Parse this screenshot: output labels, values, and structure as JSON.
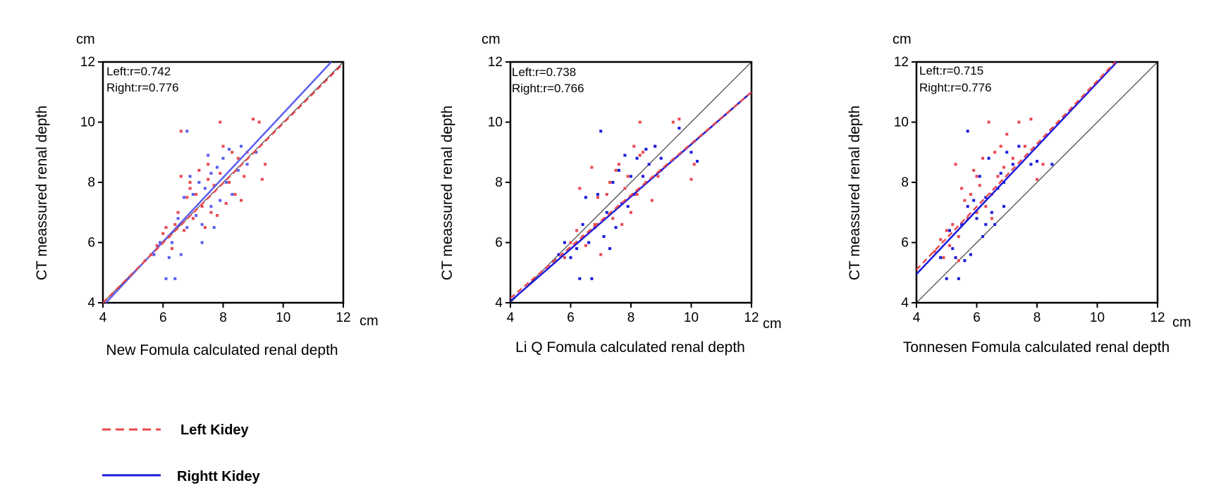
{
  "legend": {
    "left_label": "Left Kidey",
    "right_label": "Rightt Kidey"
  },
  "colors": {
    "left": "#e8484f",
    "right": "#1a1adc",
    "right_light": "#5a5ef0",
    "identity": "#222222",
    "axis": "#000000"
  },
  "chart_data": [
    {
      "type": "scatter",
      "unit": "cm",
      "xlabel": "New Fomula calculated renal depth",
      "ylabel": "CT meassured renal depth",
      "xlim": [
        4,
        12
      ],
      "ylim": [
        4,
        12
      ],
      "xticks": [
        4,
        6,
        8,
        10,
        12
      ],
      "yticks": [
        4,
        6,
        8,
        10,
        12
      ],
      "annotations": [
        "Left:r=0.742",
        "Right:r=0.776"
      ],
      "identity_line": true,
      "fit_lines": {
        "left": {
          "x0": 4.0,
          "y0": 4.0,
          "x1": 12.0,
          "y1": 11.95
        },
        "right": {
          "x0": 4.1,
          "y0": 4.0,
          "x1": 11.6,
          "y1": 12.0
        }
      },
      "series": [
        {
          "name": "Left Kidey",
          "points": [
            [
              5.4,
              5.4
            ],
            [
              5.6,
              5.6
            ],
            [
              5.8,
              5.9
            ],
            [
              6.0,
              6.3
            ],
            [
              6.1,
              6.5
            ],
            [
              6.2,
              6.2
            ],
            [
              6.3,
              5.8
            ],
            [
              6.4,
              6.6
            ],
            [
              6.5,
              7.0
            ],
            [
              6.6,
              8.2
            ],
            [
              6.7,
              6.4
            ],
            [
              6.8,
              7.5
            ],
            [
              6.9,
              7.8
            ],
            [
              7.0,
              6.8
            ],
            [
              7.1,
              7.6
            ],
            [
              7.2,
              8.4
            ],
            [
              7.3,
              7.2
            ],
            [
              7.4,
              6.5
            ],
            [
              7.5,
              8.6
            ],
            [
              7.6,
              7.0
            ],
            [
              7.7,
              7.9
            ],
            [
              7.8,
              6.9
            ],
            [
              7.9,
              8.3
            ],
            [
              8.0,
              9.2
            ],
            [
              8.1,
              7.3
            ],
            [
              8.2,
              8.0
            ],
            [
              8.3,
              9.0
            ],
            [
              8.4,
              7.6
            ],
            [
              8.5,
              8.8
            ],
            [
              8.6,
              7.4
            ],
            [
              8.7,
              8.2
            ],
            [
              8.8,
              9.0
            ],
            [
              9.0,
              10.1
            ],
            [
              9.2,
              10.0
            ],
            [
              9.3,
              8.1
            ],
            [
              9.4,
              8.6
            ],
            [
              7.9,
              10.0
            ],
            [
              6.6,
              9.7
            ],
            [
              7.5,
              8.1
            ],
            [
              6.9,
              8.0
            ]
          ]
        },
        {
          "name": "Rightt Kidey",
          "points": [
            [
              5.7,
              5.6
            ],
            [
              5.9,
              6.0
            ],
            [
              6.1,
              4.8
            ],
            [
              6.2,
              5.5
            ],
            [
              6.3,
              6.0
            ],
            [
              6.4,
              4.8
            ],
            [
              6.5,
              6.8
            ],
            [
              6.6,
              5.6
            ],
            [
              6.7,
              7.5
            ],
            [
              6.8,
              6.5
            ],
            [
              6.9,
              8.2
            ],
            [
              7.0,
              7.6
            ],
            [
              7.1,
              6.9
            ],
            [
              7.2,
              8.0
            ],
            [
              7.3,
              6.6
            ],
            [
              7.4,
              7.8
            ],
            [
              7.5,
              8.9
            ],
            [
              7.6,
              7.2
            ],
            [
              7.7,
              6.5
            ],
            [
              7.8,
              8.5
            ],
            [
              7.9,
              7.4
            ],
            [
              8.0,
              8.8
            ],
            [
              8.1,
              8.0
            ],
            [
              8.2,
              9.1
            ],
            [
              8.3,
              7.6
            ],
            [
              8.5,
              8.4
            ],
            [
              8.6,
              9.2
            ],
            [
              8.8,
              8.6
            ],
            [
              9.1,
              9.0
            ],
            [
              6.8,
              9.7
            ],
            [
              7.3,
              6.0
            ],
            [
              7.6,
              8.3
            ]
          ]
        }
      ]
    },
    {
      "type": "scatter",
      "unit": "cm",
      "xlabel": "Li Q Fomula calculated renal depth",
      "ylabel": "CT meassured renal depth",
      "xlim": [
        4,
        12
      ],
      "ylim": [
        4,
        12
      ],
      "xticks": [
        4,
        6,
        8,
        10,
        12
      ],
      "yticks": [
        4,
        6,
        8,
        10,
        12
      ],
      "annotations": [
        "Left:r=0.738",
        "Right:r=0.766"
      ],
      "identity_line": true,
      "fit_lines": {
        "left": {
          "x0": 4.0,
          "y0": 4.15,
          "x1": 12.0,
          "y1": 11.0
        },
        "right": {
          "x0": 4.0,
          "y0": 4.05,
          "x1": 12.0,
          "y1": 11.0
        }
      },
      "series": [
        {
          "name": "Left Kidey",
          "points": [
            [
              5.8,
              5.5
            ],
            [
              6.0,
              6.0
            ],
            [
              6.2,
              6.4
            ],
            [
              6.3,
              7.8
            ],
            [
              6.4,
              6.2
            ],
            [
              6.5,
              5.9
            ],
            [
              6.7,
              8.5
            ],
            [
              6.8,
              6.6
            ],
            [
              6.9,
              7.5
            ],
            [
              7.0,
              5.6
            ],
            [
              7.2,
              7.6
            ],
            [
              7.3,
              8.0
            ],
            [
              7.4,
              6.8
            ],
            [
              7.5,
              8.4
            ],
            [
              7.6,
              7.2
            ],
            [
              7.7,
              6.6
            ],
            [
              7.8,
              7.8
            ],
            [
              7.9,
              8.2
            ],
            [
              8.0,
              7.0
            ],
            [
              8.1,
              9.2
            ],
            [
              8.2,
              7.6
            ],
            [
              8.3,
              8.9
            ],
            [
              8.4,
              9.0
            ],
            [
              8.5,
              8.0
            ],
            [
              8.6,
              8.6
            ],
            [
              8.7,
              7.4
            ],
            [
              8.8,
              9.2
            ],
            [
              9.0,
              8.4
            ],
            [
              9.4,
              10.0
            ],
            [
              9.6,
              10.1
            ],
            [
              10.0,
              8.1
            ],
            [
              10.1,
              8.6
            ],
            [
              8.3,
              10.0
            ],
            [
              7.6,
              8.6
            ],
            [
              8.9,
              8.2
            ]
          ]
        },
        {
          "name": "Rightt Kidey",
          "points": [
            [
              5.6,
              5.6
            ],
            [
              5.8,
              6.0
            ],
            [
              6.0,
              5.5
            ],
            [
              6.2,
              5.8
            ],
            [
              6.3,
              4.8
            ],
            [
              6.4,
              6.6
            ],
            [
              6.5,
              7.5
            ],
            [
              6.6,
              6.0
            ],
            [
              6.7,
              4.8
            ],
            [
              6.8,
              6.5
            ],
            [
              6.9,
              7.6
            ],
            [
              7.0,
              9.7
            ],
            [
              7.1,
              6.2
            ],
            [
              7.2,
              7.0
            ],
            [
              7.3,
              5.8
            ],
            [
              7.4,
              8.0
            ],
            [
              7.5,
              6.5
            ],
            [
              7.6,
              8.4
            ],
            [
              7.7,
              7.3
            ],
            [
              7.8,
              8.9
            ],
            [
              7.9,
              7.2
            ],
            [
              8.0,
              8.2
            ],
            [
              8.1,
              7.6
            ],
            [
              8.2,
              8.8
            ],
            [
              8.4,
              8.2
            ],
            [
              8.6,
              8.6
            ],
            [
              8.8,
              9.2
            ],
            [
              9.0,
              8.8
            ],
            [
              9.6,
              9.8
            ],
            [
              10.0,
              9.0
            ],
            [
              10.2,
              8.7
            ],
            [
              8.5,
              9.1
            ]
          ]
        }
      ]
    },
    {
      "type": "scatter",
      "unit": "cm",
      "xlabel": "Tonnesen Fomula calculated renal depth",
      "ylabel": "CT meassured renal depth",
      "xlim": [
        4,
        12
      ],
      "ylim": [
        4,
        12
      ],
      "xticks": [
        4,
        6,
        8,
        10,
        12
      ],
      "yticks": [
        4,
        6,
        8,
        10,
        12
      ],
      "annotations": [
        "Left:r=0.715",
        "Right:r=0.776"
      ],
      "identity_line": true,
      "fit_lines": {
        "left": {
          "x0": 4.0,
          "y0": 5.1,
          "x1": 10.6,
          "y1": 12.0
        },
        "right": {
          "x0": 4.0,
          "y0": 4.95,
          "x1": 10.65,
          "y1": 12.0
        }
      },
      "series": [
        {
          "name": "Left Kidey",
          "points": [
            [
              4.6,
              5.7
            ],
            [
              4.8,
              6.1
            ],
            [
              4.9,
              5.5
            ],
            [
              5.0,
              6.4
            ],
            [
              5.1,
              5.9
            ],
            [
              5.2,
              6.6
            ],
            [
              5.3,
              8.6
            ],
            [
              5.4,
              6.2
            ],
            [
              5.5,
              7.8
            ],
            [
              5.6,
              7.4
            ],
            [
              5.7,
              6.8
            ],
            [
              5.8,
              7.6
            ],
            [
              5.9,
              8.4
            ],
            [
              6.0,
              7.0
            ],
            [
              6.1,
              7.9
            ],
            [
              6.2,
              8.8
            ],
            [
              6.3,
              7.2
            ],
            [
              6.4,
              10.0
            ],
            [
              6.5,
              7.6
            ],
            [
              6.6,
              9.0
            ],
            [
              6.7,
              8.2
            ],
            [
              6.8,
              9.2
            ],
            [
              6.9,
              8.5
            ],
            [
              7.0,
              9.6
            ],
            [
              7.2,
              8.8
            ],
            [
              7.4,
              10.0
            ],
            [
              7.6,
              9.2
            ],
            [
              7.8,
              10.1
            ],
            [
              8.0,
              8.1
            ],
            [
              8.2,
              8.6
            ],
            [
              6.0,
              8.2
            ],
            [
              6.5,
              6.8
            ],
            [
              5.4,
              5.4
            ]
          ]
        },
        {
          "name": "Rightt Kidey",
          "points": [
            [
              4.8,
              5.5
            ],
            [
              5.0,
              4.8
            ],
            [
              5.1,
              6.4
            ],
            [
              5.2,
              5.8
            ],
            [
              5.3,
              5.5
            ],
            [
              5.4,
              4.8
            ],
            [
              5.5,
              6.6
            ],
            [
              5.6,
              5.4
            ],
            [
              5.7,
              7.2
            ],
            [
              5.8,
              5.6
            ],
            [
              5.9,
              7.4
            ],
            [
              6.0,
              6.8
            ],
            [
              6.1,
              8.2
            ],
            [
              6.2,
              6.2
            ],
            [
              6.3,
              7.5
            ],
            [
              6.4,
              8.8
            ],
            [
              6.5,
              7.0
            ],
            [
              6.6,
              6.6
            ],
            [
              6.7,
              7.8
            ],
            [
              6.8,
              8.3
            ],
            [
              6.9,
              7.2
            ],
            [
              7.0,
              9.0
            ],
            [
              7.2,
              8.6
            ],
            [
              7.4,
              9.2
            ],
            [
              7.8,
              8.6
            ],
            [
              8.0,
              8.7
            ],
            [
              8.5,
              8.6
            ],
            [
              5.7,
              9.7
            ],
            [
              6.3,
              6.6
            ],
            [
              6.9,
              8.0
            ]
          ]
        }
      ]
    }
  ]
}
